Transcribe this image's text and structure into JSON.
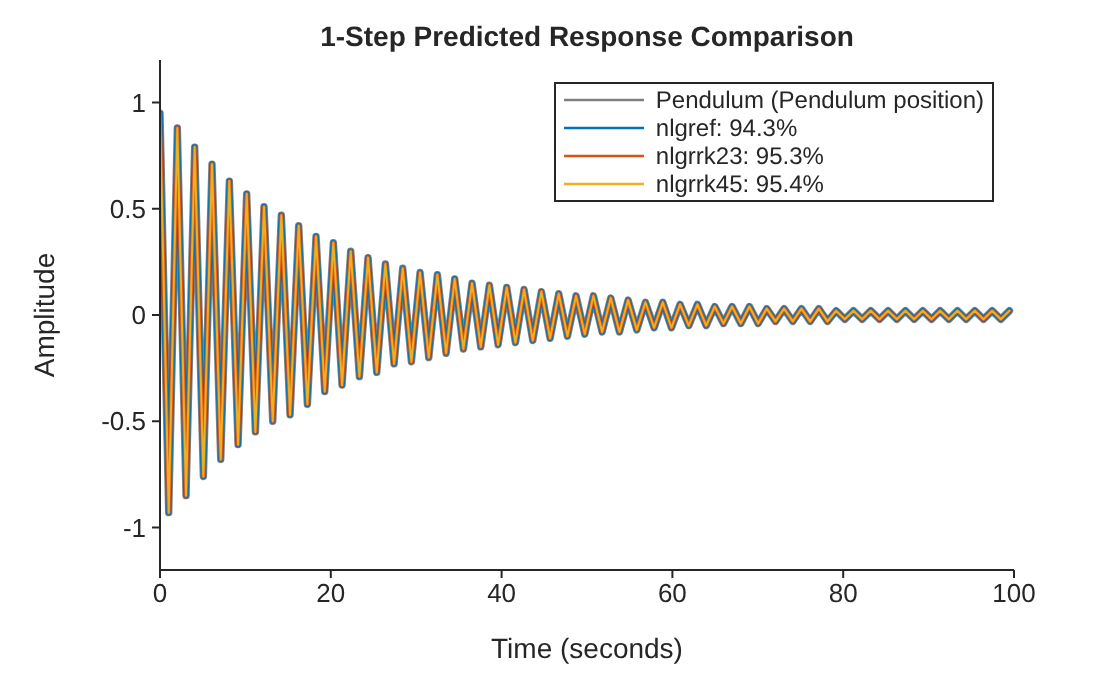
{
  "chart_data": {
    "type": "line",
    "title": "1-Step Predicted Response Comparison",
    "xlabel": "Time (seconds)",
    "ylabel": "Amplitude",
    "x": [
      0,
      1.02,
      2.03,
      3.05,
      4.06,
      5.08,
      6.09,
      7.11,
      8.12,
      9.14,
      10.15,
      11.17,
      12.18,
      13.2,
      14.21,
      15.23,
      16.24,
      17.26,
      18.27,
      19.29,
      20.3,
      21.32,
      22.33,
      23.35,
      24.36,
      25.38,
      26.39,
      27.41,
      28.42,
      29.44,
      30.45,
      31.47,
      32.48,
      33.5,
      34.51,
      35.53,
      36.54,
      37.56,
      38.57,
      39.59,
      40.6,
      41.62,
      42.63,
      43.65,
      44.66,
      45.68,
      46.69,
      47.71,
      48.72,
      49.74,
      50.75,
      51.77,
      52.78,
      53.8,
      54.81,
      55.83,
      56.84,
      57.86,
      58.87,
      59.89,
      60.9,
      61.92,
      62.93,
      63.95,
      64.96,
      65.98,
      66.99,
      68.01,
      69.02,
      70.04,
      71.05,
      72.07,
      73.08,
      74.1,
      75.11,
      76.13,
      77.14,
      78.16,
      79.17,
      80.19,
      81.2,
      82.22,
      83.23,
      84.25,
      85.26,
      86.28,
      87.29,
      88.31,
      89.32,
      90.34,
      91.35,
      92.37,
      93.38,
      94.4,
      95.41,
      96.43,
      97.44,
      98.46,
      99.47
    ],
    "series": [
      {
        "name": "Pendulum (Pendulum position)",
        "color": "#808080",
        "values": [
          0.95,
          -0.93,
          0.88,
          -0.85,
          0.79,
          -0.76,
          0.71,
          -0.68,
          0.63,
          -0.61,
          0.57,
          -0.55,
          0.51,
          -0.5,
          0.47,
          -0.47,
          0.42,
          -0.42,
          0.37,
          -0.36,
          0.34,
          -0.33,
          0.3,
          -0.29,
          0.27,
          -0.27,
          0.24,
          -0.23,
          0.22,
          -0.22,
          0.2,
          -0.2,
          0.19,
          -0.18,
          0.17,
          -0.16,
          0.15,
          -0.15,
          0.14,
          -0.14,
          0.13,
          -0.13,
          0.12,
          -0.12,
          0.11,
          -0.11,
          0.1,
          -0.1,
          0.09,
          -0.09,
          0.09,
          -0.08,
          0.08,
          -0.08,
          0.07,
          -0.07,
          0.06,
          -0.06,
          0.06,
          -0.06,
          0.05,
          -0.05,
          0.05,
          -0.05,
          0.04,
          -0.04,
          0.04,
          -0.04,
          0.04,
          -0.04,
          0.03,
          -0.03,
          0.03,
          -0.03,
          0.03,
          -0.03,
          0.03,
          -0.03,
          0.02,
          -0.02,
          0.02,
          -0.02,
          0.02,
          -0.02,
          0.02,
          -0.02,
          0.02,
          -0.02,
          0.02,
          -0.02,
          0.02,
          -0.02,
          0.02,
          -0.02,
          0.02,
          -0.02,
          0.02,
          -0.02,
          0.02
        ]
      },
      {
        "name": "nlgref: 94.3%",
        "color": "#0072bd",
        "values": [
          0.95,
          -0.93,
          0.88,
          -0.85,
          0.79,
          -0.76,
          0.71,
          -0.68,
          0.63,
          -0.61,
          0.57,
          -0.55,
          0.51,
          -0.5,
          0.47,
          -0.47,
          0.42,
          -0.42,
          0.37,
          -0.36,
          0.34,
          -0.33,
          0.3,
          -0.29,
          0.27,
          -0.27,
          0.24,
          -0.23,
          0.22,
          -0.22,
          0.2,
          -0.2,
          0.19,
          -0.18,
          0.17,
          -0.16,
          0.15,
          -0.15,
          0.14,
          -0.14,
          0.13,
          -0.13,
          0.12,
          -0.12,
          0.11,
          -0.11,
          0.1,
          -0.1,
          0.09,
          -0.09,
          0.09,
          -0.08,
          0.08,
          -0.08,
          0.07,
          -0.07,
          0.06,
          -0.06,
          0.06,
          -0.06,
          0.05,
          -0.05,
          0.05,
          -0.05,
          0.04,
          -0.04,
          0.04,
          -0.04,
          0.04,
          -0.04,
          0.03,
          -0.03,
          0.03,
          -0.03,
          0.03,
          -0.03,
          0.03,
          -0.03,
          0.02,
          -0.02,
          0.02,
          -0.02,
          0.02,
          -0.02,
          0.02,
          -0.02,
          0.02,
          -0.02,
          0.02,
          -0.02,
          0.02,
          -0.02,
          0.02,
          -0.02,
          0.02,
          -0.02,
          0.02,
          -0.02,
          0.02
        ]
      },
      {
        "name": "nlgrrk23: 95.3%",
        "color": "#d95319",
        "values": [
          0.95,
          -0.93,
          0.88,
          -0.85,
          0.79,
          -0.76,
          0.71,
          -0.68,
          0.63,
          -0.61,
          0.57,
          -0.55,
          0.51,
          -0.5,
          0.47,
          -0.47,
          0.42,
          -0.42,
          0.37,
          -0.36,
          0.34,
          -0.33,
          0.3,
          -0.29,
          0.27,
          -0.27,
          0.24,
          -0.23,
          0.22,
          -0.22,
          0.2,
          -0.2,
          0.19,
          -0.18,
          0.17,
          -0.16,
          0.15,
          -0.15,
          0.14,
          -0.14,
          0.13,
          -0.13,
          0.12,
          -0.12,
          0.11,
          -0.11,
          0.1,
          -0.1,
          0.09,
          -0.09,
          0.09,
          -0.08,
          0.08,
          -0.08,
          0.07,
          -0.07,
          0.06,
          -0.06,
          0.06,
          -0.06,
          0.05,
          -0.05,
          0.05,
          -0.05,
          0.04,
          -0.04,
          0.04,
          -0.04,
          0.04,
          -0.04,
          0.03,
          -0.03,
          0.03,
          -0.03,
          0.03,
          -0.03,
          0.03,
          -0.03,
          0.02,
          -0.02,
          0.02,
          -0.02,
          0.02,
          -0.02,
          0.02,
          -0.02,
          0.02,
          -0.02,
          0.02,
          -0.02,
          0.02,
          -0.02,
          0.02,
          -0.02,
          0.02,
          -0.02,
          0.02,
          -0.02,
          0.02
        ]
      },
      {
        "name": "nlgrrk45: 95.4%",
        "color": "#edb120",
        "values": [
          0.95,
          -0.93,
          0.88,
          -0.85,
          0.79,
          -0.76,
          0.71,
          -0.68,
          0.63,
          -0.61,
          0.57,
          -0.55,
          0.51,
          -0.5,
          0.47,
          -0.47,
          0.42,
          -0.42,
          0.37,
          -0.36,
          0.34,
          -0.33,
          0.3,
          -0.29,
          0.27,
          -0.27,
          0.24,
          -0.23,
          0.22,
          -0.22,
          0.2,
          -0.2,
          0.19,
          -0.18,
          0.17,
          -0.16,
          0.15,
          -0.15,
          0.14,
          -0.14,
          0.13,
          -0.13,
          0.12,
          -0.12,
          0.11,
          -0.11,
          0.1,
          -0.1,
          0.09,
          -0.09,
          0.09,
          -0.08,
          0.08,
          -0.08,
          0.07,
          -0.07,
          0.06,
          -0.06,
          0.06,
          -0.06,
          0.05,
          -0.05,
          0.05,
          -0.05,
          0.04,
          -0.04,
          0.04,
          -0.04,
          0.04,
          -0.04,
          0.03,
          -0.03,
          0.03,
          -0.03,
          0.03,
          -0.03,
          0.03,
          -0.03,
          0.02,
          -0.02,
          0.02,
          -0.02,
          0.02,
          -0.02,
          0.02,
          -0.02,
          0.02,
          -0.02,
          0.02,
          -0.02,
          0.02,
          -0.02,
          0.02,
          -0.02,
          0.02,
          -0.02,
          0.02,
          -0.02,
          0.02
        ]
      }
    ],
    "xlim": [
      0,
      100
    ],
    "xticks": [
      0,
      20,
      40,
      60,
      80,
      100
    ],
    "ylim": [
      -1.2,
      1.2
    ],
    "yticks": [
      -1,
      -0.5,
      0,
      0.5,
      1
    ],
    "grid": false,
    "legend": "top right",
    "marker": "none",
    "line_style": "solid"
  }
}
